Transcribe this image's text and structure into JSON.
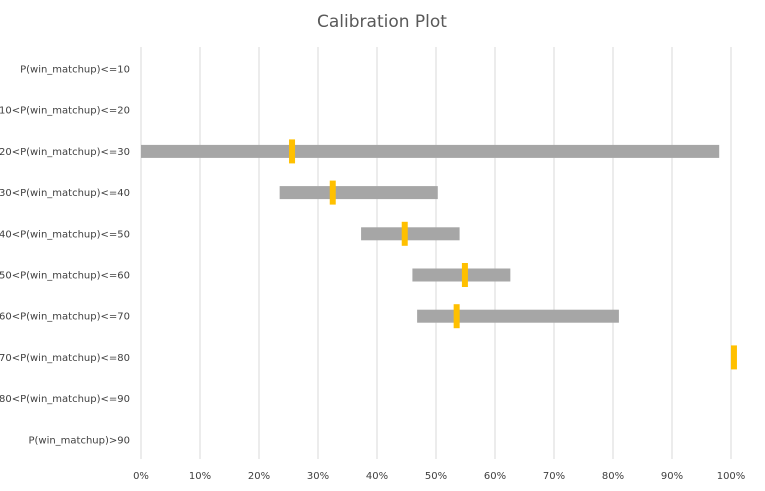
{
  "chart_data": {
    "type": "bar",
    "subtype": "floating-range-with-marker",
    "title": "Calibration Plot",
    "xlabel": "",
    "ylabel": "",
    "xlim": [
      0,
      1
    ],
    "x_ticks": [
      "0%",
      "10%",
      "20%",
      "30%",
      "40%",
      "50%",
      "60%",
      "70%",
      "80%",
      "90%",
      "100%"
    ],
    "grid": "vertical",
    "categories": [
      "P(win_matchup)<=10",
      "10<P(win_matchup)<=20",
      "20<P(win_matchup)<=30",
      "30<P(win_matchup)<=40",
      "40<P(win_matchup)<=50",
      "50<P(win_matchup)<=60",
      "60<P(win_matchup)<=70",
      "70<P(win_matchup)<=80",
      "80<P(win_matchup)<=90",
      "P(win_matchup)>90"
    ],
    "series": [
      {
        "values": [
          null,
          null,
          [
            0.0,
            0.98
          ],
          [
            0.235,
            0.503
          ],
          [
            0.373,
            0.54
          ],
          [
            0.46,
            0.626
          ],
          [
            0.468,
            0.81
          ],
          null,
          null,
          null
        ]
      },
      {
        "values": [
          null,
          null,
          0.256,
          0.325,
          0.447,
          0.549,
          0.535,
          1.005,
          null,
          null
        ]
      }
    ],
    "colors": {
      "range": "#a6a6a6",
      "marker": "#ffc000",
      "grid": "#d9d9d9",
      "text": "#404040",
      "title": "#595959"
    }
  }
}
